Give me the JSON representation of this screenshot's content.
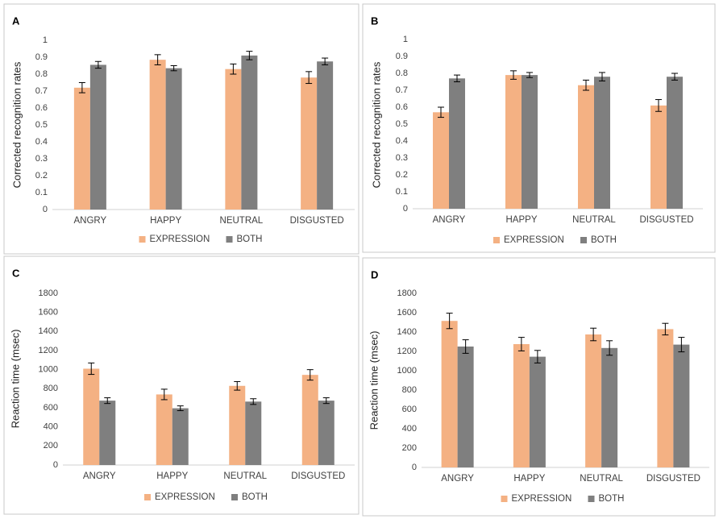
{
  "chart_data": [
    {
      "type": "bar",
      "title": "A",
      "ylabel": "Corrected recognition rates",
      "categories": [
        "ANGRY",
        "HAPPY",
        "NEUTRAL",
        "DISGUSTED"
      ],
      "series": [
        {
          "name": "EXPRESSION",
          "color": "#f4b183",
          "values": [
            0.72,
            0.885,
            0.83,
            0.78
          ],
          "errors": [
            0.03,
            0.03,
            0.03,
            0.035
          ]
        },
        {
          "name": "BOTH",
          "color": "#7f7f7f",
          "values": [
            0.855,
            0.835,
            0.91,
            0.875
          ],
          "errors": [
            0.02,
            0.015,
            0.025,
            0.02
          ]
        }
      ],
      "ylim": [
        0,
        1
      ],
      "yticks": [
        0,
        0.1,
        0.2,
        0.3,
        0.4,
        0.5,
        0.6,
        0.7,
        0.8,
        0.9,
        1
      ]
    },
    {
      "type": "bar",
      "title": "B",
      "ylabel": "Corrected recognition rates",
      "categories": [
        "ANGRY",
        "HAPPY",
        "NEUTRAL",
        "DISGUSTED"
      ],
      "series": [
        {
          "name": "EXPRESSION",
          "color": "#f4b183",
          "values": [
            0.57,
            0.79,
            0.73,
            0.61
          ],
          "errors": [
            0.03,
            0.025,
            0.03,
            0.035
          ]
        },
        {
          "name": "BOTH",
          "color": "#7f7f7f",
          "values": [
            0.77,
            0.79,
            0.78,
            0.78
          ],
          "errors": [
            0.02,
            0.015,
            0.025,
            0.02
          ]
        }
      ],
      "ylim": [
        0,
        1
      ],
      "yticks": [
        0,
        0.1,
        0.2,
        0.3,
        0.4,
        0.5,
        0.6,
        0.7,
        0.8,
        0.9,
        1
      ]
    },
    {
      "type": "bar",
      "title": "C",
      "ylabel": "Reaction time (msec)",
      "categories": [
        "ANGRY",
        "HAPPY",
        "NEUTRAL",
        "DISGUSTED"
      ],
      "series": [
        {
          "name": "EXPRESSION",
          "color": "#f4b183",
          "values": [
            1010,
            740,
            830,
            945
          ],
          "errors": [
            60,
            55,
            45,
            55
          ]
        },
        {
          "name": "BOTH",
          "color": "#7f7f7f",
          "values": [
            675,
            595,
            665,
            675
          ],
          "errors": [
            30,
            25,
            30,
            30
          ]
        }
      ],
      "ylim": [
        0,
        1800
      ],
      "yticks": [
        0,
        200,
        400,
        600,
        800,
        1000,
        1200,
        1400,
        1600,
        1800
      ]
    },
    {
      "type": "bar",
      "title": "D",
      "ylabel": "Reaction time (msec)",
      "categories": [
        "ANGRY",
        "HAPPY",
        "NEUTRAL",
        "DISGUSTED"
      ],
      "series": [
        {
          "name": "EXPRESSION",
          "color": "#f4b183",
          "values": [
            1515,
            1275,
            1375,
            1430
          ],
          "errors": [
            80,
            70,
            65,
            60
          ]
        },
        {
          "name": "BOTH",
          "color": "#7f7f7f",
          "values": [
            1250,
            1145,
            1235,
            1270
          ],
          "errors": [
            70,
            65,
            75,
            75
          ]
        }
      ],
      "ylim": [
        0,
        1800
      ],
      "yticks": [
        0,
        200,
        400,
        600,
        800,
        1000,
        1200,
        1400,
        1600,
        1800
      ]
    }
  ]
}
